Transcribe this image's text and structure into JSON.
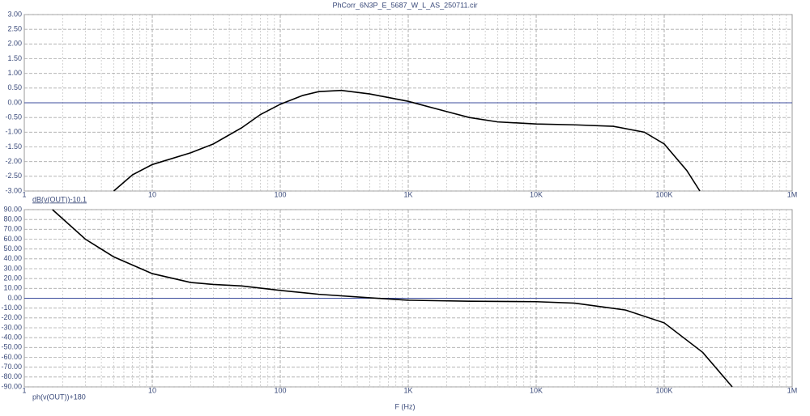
{
  "chart_data": [
    {
      "type": "line",
      "title": "PhCorr_6N3P_E_5687_W_L_AS_250711.cir",
      "ylabel": "dB(v(OUT))-10.1",
      "log_x": true,
      "grid": true,
      "minor_grid": true,
      "zero_line": true,
      "color": "#000000",
      "xlim": [
        1,
        1000000
      ],
      "xticks": [
        1,
        10,
        100,
        {
          "value": 1000,
          "label": "1K"
        },
        {
          "value": 10000,
          "label": "10K"
        },
        {
          "value": 100000,
          "label": "100K"
        },
        {
          "value": 1000000,
          "label": "1M"
        }
      ],
      "ylim": [
        -3,
        3
      ],
      "yticks": [
        {
          "value": 3,
          "label": "3.00"
        },
        {
          "value": 2.5,
          "label": "2.50"
        },
        {
          "value": 2,
          "label": "2.00"
        },
        {
          "value": 1.5,
          "label": "1.50"
        },
        {
          "value": 1,
          "label": "1.00"
        },
        {
          "value": 0.5,
          "label": "0.50"
        },
        {
          "value": 0,
          "label": "0.00"
        },
        {
          "value": -0.5,
          "label": "-0.50"
        },
        {
          "value": -1,
          "label": "-1.00"
        },
        {
          "value": -1.5,
          "label": "-1.50"
        },
        {
          "value": -2,
          "label": "-2.00"
        },
        {
          "value": -2.5,
          "label": "-2.50"
        },
        {
          "value": -3,
          "label": "-3.00"
        }
      ],
      "x": [
        5,
        7,
        10,
        20,
        30,
        50,
        70,
        100,
        150,
        200,
        300,
        500,
        1000,
        2000,
        3000,
        5000,
        10000,
        20000,
        40000,
        70000,
        100000,
        150000,
        190000
      ],
      "values": [
        -3.0,
        -2.45,
        -2.1,
        -1.7,
        -1.4,
        -0.85,
        -0.4,
        -0.05,
        0.25,
        0.38,
        0.42,
        0.3,
        0.05,
        -0.3,
        -0.5,
        -0.65,
        -0.72,
        -0.75,
        -0.8,
        -1.0,
        -1.4,
        -2.3,
        -3.0
      ]
    },
    {
      "type": "line",
      "ylabel": "ph(v(OUT))+180",
      "xlabel": "F (Hz)",
      "log_x": true,
      "grid": true,
      "minor_grid": true,
      "zero_line": true,
      "color": "#000000",
      "xlim": [
        1,
        1000000
      ],
      "xticks": [
        1,
        10,
        100,
        {
          "value": 1000,
          "label": "1K"
        },
        {
          "value": 10000,
          "label": "10K"
        },
        {
          "value": 100000,
          "label": "100K"
        },
        {
          "value": 1000000,
          "label": "1M"
        }
      ],
      "ylim": [
        -90,
        90
      ],
      "yticks": [
        {
          "value": 90,
          "label": "90.00"
        },
        {
          "value": 80,
          "label": "80.00"
        },
        {
          "value": 70,
          "label": "70.00"
        },
        {
          "value": 60,
          "label": "60.00"
        },
        {
          "value": 50,
          "label": "50.00"
        },
        {
          "value": 40,
          "label": "40.00"
        },
        {
          "value": 30,
          "label": "30.00"
        },
        {
          "value": 20,
          "label": "20.00"
        },
        {
          "value": 10,
          "label": "10.00"
        },
        {
          "value": 0,
          "label": "0.00"
        },
        {
          "value": -10,
          "label": "-10.00"
        },
        {
          "value": -20,
          "label": "-20.00"
        },
        {
          "value": -30,
          "label": "-30.00"
        },
        {
          "value": -40,
          "label": "-40.00"
        },
        {
          "value": -50,
          "label": "-50.00"
        },
        {
          "value": -60,
          "label": "-60.00"
        },
        {
          "value": -70,
          "label": "-70.00"
        },
        {
          "value": -80,
          "label": "-80.00"
        },
        {
          "value": -90,
          "label": "-90.00"
        }
      ],
      "x": [
        1.66,
        3,
        5,
        10,
        20,
        30,
        50,
        100,
        200,
        500,
        1000,
        3000,
        10000,
        20000,
        50000,
        100000,
        200000,
        340000
      ],
      "values": [
        90,
        60,
        42,
        25,
        16,
        14,
        12.5,
        8,
        4,
        0.5,
        -2,
        -3,
        -3.5,
        -5,
        -12,
        -25,
        -55,
        -90
      ]
    }
  ]
}
